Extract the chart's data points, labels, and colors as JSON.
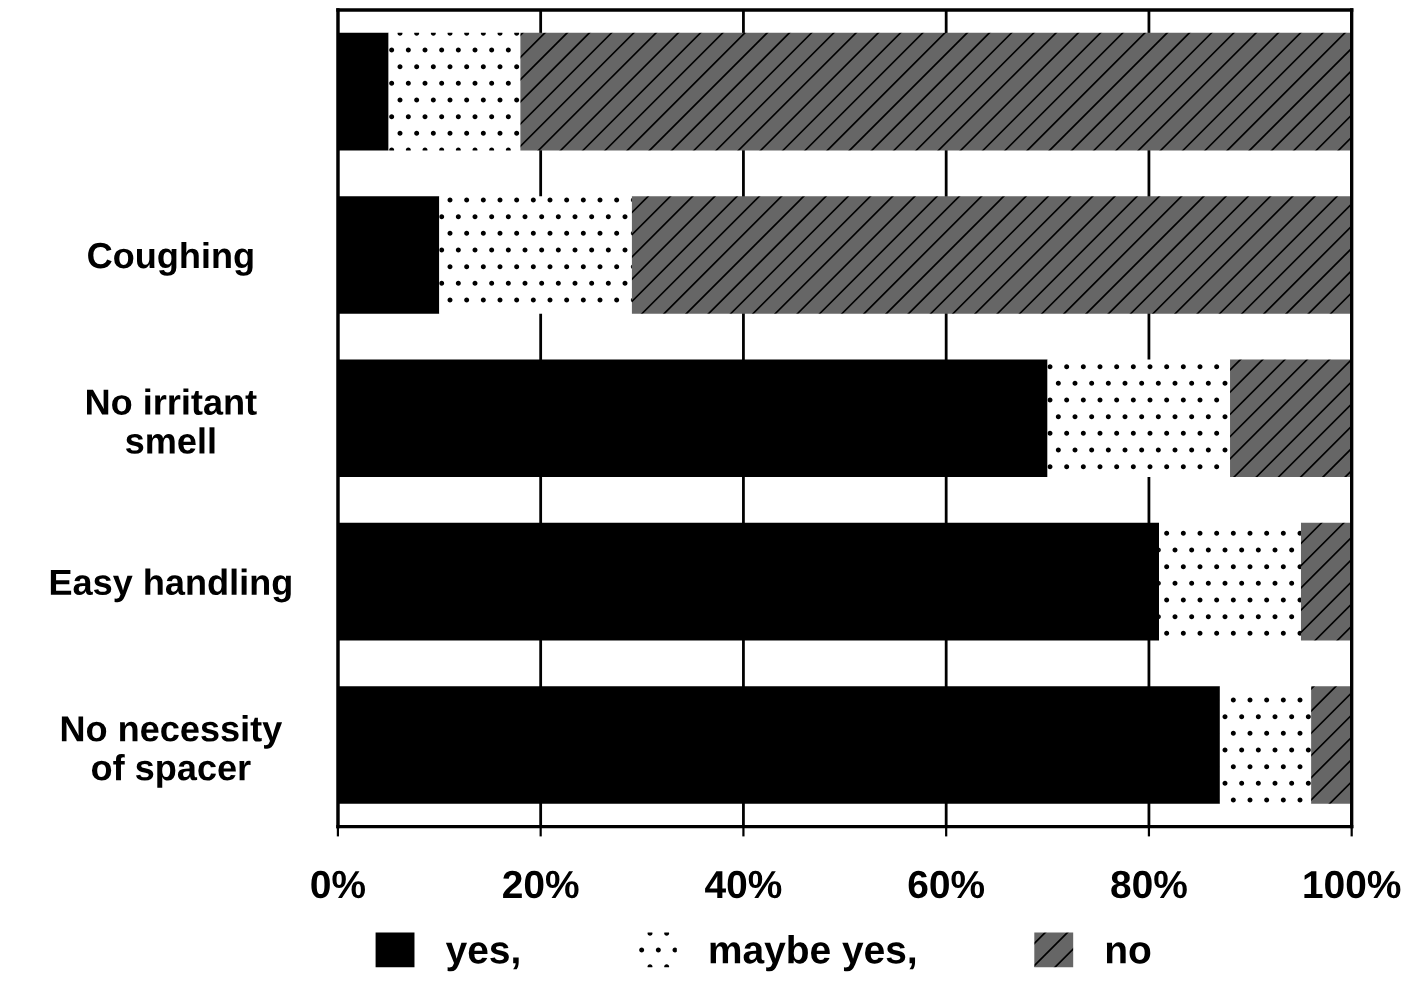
{
  "chart_data": {
    "type": "bar",
    "orientation": "horizontal",
    "stacked": true,
    "categories": [
      null,
      "Coughing",
      "No irritant\nsmell",
      "Easy handling",
      "No necessity\nof spacer"
    ],
    "series": [
      {
        "name": "yes,",
        "color": "#000000",
        "values": [
          5,
          10,
          70,
          81,
          87
        ]
      },
      {
        "name": "maybe yes,",
        "color": "#ffffff",
        "values": [
          13,
          19,
          18,
          14,
          9
        ]
      },
      {
        "name": "no",
        "color": "#666666",
        "values": [
          82,
          71,
          12,
          5,
          4
        ]
      }
    ],
    "xlim": [
      0,
      100
    ],
    "xticks": [
      {
        "value": 0,
        "label": "0%"
      },
      {
        "value": 20,
        "label": "20%"
      },
      {
        "value": 40,
        "label": "40%"
      },
      {
        "value": 60,
        "label": "60%"
      },
      {
        "value": 80,
        "label": "80%"
      },
      {
        "value": 100,
        "label": "100%"
      }
    ],
    "grid": "x",
    "legend": "bottom"
  }
}
